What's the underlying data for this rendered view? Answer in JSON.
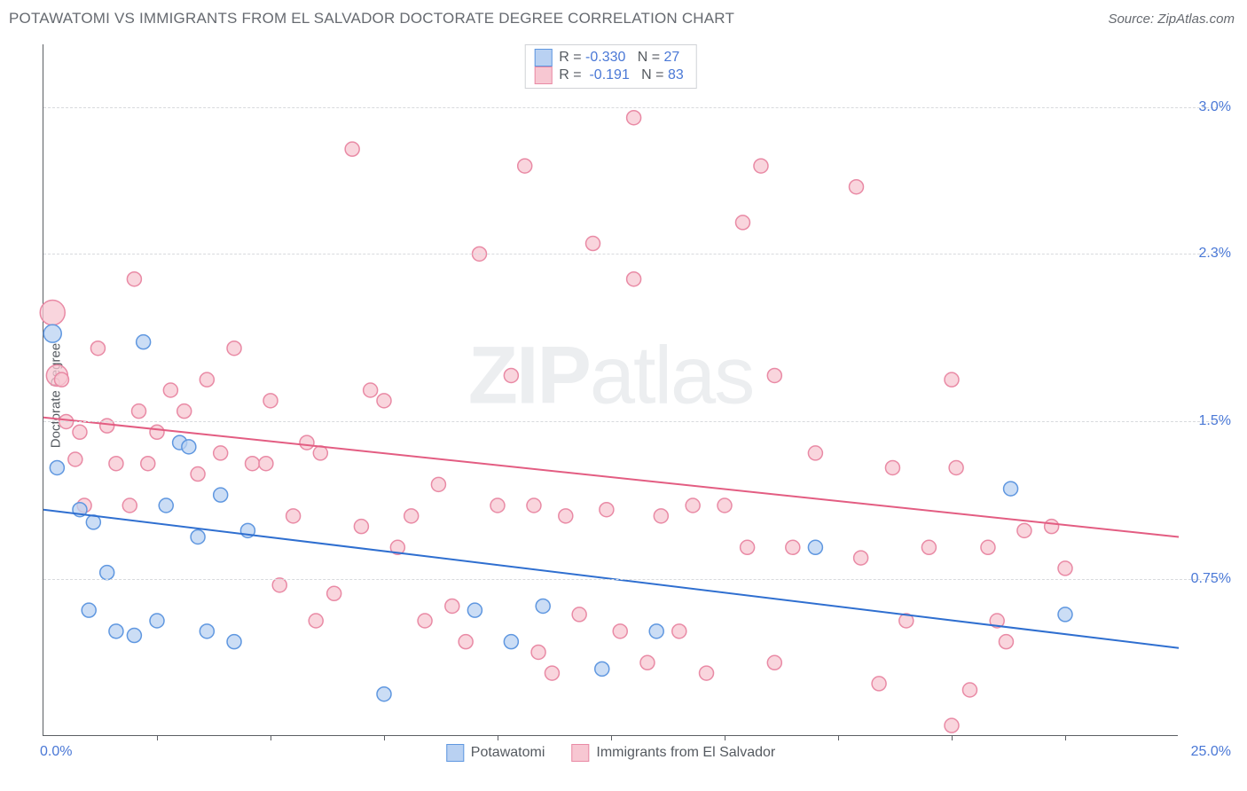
{
  "header": {
    "title": "POTAWATOMI VS IMMIGRANTS FROM EL SALVADOR DOCTORATE DEGREE CORRELATION CHART",
    "source": "Source: ZipAtlas.com"
  },
  "watermark": {
    "part1": "ZIP",
    "part2": "atlas"
  },
  "chart": {
    "type": "scatter",
    "ylabel": "Doctorate Degree",
    "background_color": "#ffffff",
    "grid_color": "#d8dadd",
    "axis_color": "#5b5e63",
    "label_color": "#555a60",
    "value_color": "#4a78d6",
    "xlim": [
      0,
      25
    ],
    "ylim": [
      0,
      3.3
    ],
    "xtick_positions": [
      2.5,
      5.0,
      7.5,
      10.0,
      12.5,
      15.0,
      17.5,
      20.0,
      22.5
    ],
    "xlim_labels": {
      "min": "0.0%",
      "max": "25.0%"
    },
    "yticks": [
      {
        "value": 0.75,
        "label": "0.75%"
      },
      {
        "value": 1.5,
        "label": "1.5%"
      },
      {
        "value": 2.3,
        "label": "2.3%"
      },
      {
        "value": 3.0,
        "label": "3.0%"
      }
    ],
    "series": [
      {
        "name": "Potawatomi",
        "fill": "#b9d1f2",
        "stroke": "#5f97e0",
        "line_color": "#2f6fd0",
        "r_label": "R = ",
        "r_value": "-0.330",
        "n_label": "   N = ",
        "n_value": "27",
        "trend": {
          "x1": 0,
          "y1": 1.08,
          "x2": 25,
          "y2": 0.42
        },
        "points": [
          {
            "x": 0.2,
            "y": 1.92,
            "r": 10
          },
          {
            "x": 0.3,
            "y": 1.28,
            "r": 8
          },
          {
            "x": 0.8,
            "y": 1.08,
            "r": 8
          },
          {
            "x": 1.1,
            "y": 1.02,
            "r": 8
          },
          {
            "x": 1.0,
            "y": 0.6,
            "r": 8
          },
          {
            "x": 1.4,
            "y": 0.78,
            "r": 8
          },
          {
            "x": 1.6,
            "y": 0.5,
            "r": 8
          },
          {
            "x": 2.0,
            "y": 0.48,
            "r": 8
          },
          {
            "x": 2.2,
            "y": 1.88,
            "r": 8
          },
          {
            "x": 2.7,
            "y": 1.1,
            "r": 8
          },
          {
            "x": 3.0,
            "y": 1.4,
            "r": 8
          },
          {
            "x": 3.2,
            "y": 1.38,
            "r": 8
          },
          {
            "x": 3.4,
            "y": 0.95,
            "r": 8
          },
          {
            "x": 3.6,
            "y": 0.5,
            "r": 8
          },
          {
            "x": 4.2,
            "y": 0.45,
            "r": 8
          },
          {
            "x": 3.9,
            "y": 1.15,
            "r": 8
          },
          {
            "x": 4.5,
            "y": 0.98,
            "r": 8
          },
          {
            "x": 7.5,
            "y": 0.2,
            "r": 8
          },
          {
            "x": 9.5,
            "y": 0.6,
            "r": 8
          },
          {
            "x": 10.3,
            "y": 0.45,
            "r": 8
          },
          {
            "x": 11.0,
            "y": 0.62,
            "r": 8
          },
          {
            "x": 12.3,
            "y": 0.32,
            "r": 8
          },
          {
            "x": 13.5,
            "y": 0.5,
            "r": 8
          },
          {
            "x": 17.0,
            "y": 0.9,
            "r": 8
          },
          {
            "x": 21.3,
            "y": 1.18,
            "r": 8
          },
          {
            "x": 22.5,
            "y": 0.58,
            "r": 8
          },
          {
            "x": 2.5,
            "y": 0.55,
            "r": 8
          }
        ]
      },
      {
        "name": "Immigrants from El Salvador",
        "fill": "#f7c7d2",
        "stroke": "#e98aa5",
        "line_color": "#e35d82",
        "r_label": "R = ",
        "r_value": " -0.191",
        "n_label": "   N = ",
        "n_value": "83",
        "trend": {
          "x1": 0,
          "y1": 1.52,
          "x2": 25,
          "y2": 0.95
        },
        "points": [
          {
            "x": 0.2,
            "y": 2.02,
            "r": 14
          },
          {
            "x": 0.3,
            "y": 1.72,
            "r": 12
          },
          {
            "x": 0.4,
            "y": 1.7,
            "r": 8
          },
          {
            "x": 0.5,
            "y": 1.5,
            "r": 8
          },
          {
            "x": 0.7,
            "y": 1.32,
            "r": 8
          },
          {
            "x": 0.8,
            "y": 1.45,
            "r": 8
          },
          {
            "x": 1.2,
            "y": 1.85,
            "r": 8
          },
          {
            "x": 1.4,
            "y": 1.48,
            "r": 8
          },
          {
            "x": 1.6,
            "y": 1.3,
            "r": 8
          },
          {
            "x": 2.0,
            "y": 2.18,
            "r": 8
          },
          {
            "x": 2.1,
            "y": 1.55,
            "r": 8
          },
          {
            "x": 2.3,
            "y": 1.3,
            "r": 8
          },
          {
            "x": 2.5,
            "y": 1.45,
            "r": 8
          },
          {
            "x": 2.8,
            "y": 1.65,
            "r": 8
          },
          {
            "x": 3.1,
            "y": 1.55,
            "r": 8
          },
          {
            "x": 3.4,
            "y": 1.25,
            "r": 8
          },
          {
            "x": 3.6,
            "y": 1.7,
            "r": 8
          },
          {
            "x": 3.9,
            "y": 1.35,
            "r": 8
          },
          {
            "x": 4.2,
            "y": 1.85,
            "r": 8
          },
          {
            "x": 4.6,
            "y": 1.3,
            "r": 8
          },
          {
            "x": 5.0,
            "y": 1.6,
            "r": 8
          },
          {
            "x": 5.2,
            "y": 0.72,
            "r": 8
          },
          {
            "x": 5.5,
            "y": 1.05,
            "r": 8
          },
          {
            "x": 5.8,
            "y": 1.4,
            "r": 8
          },
          {
            "x": 6.1,
            "y": 1.35,
            "r": 8
          },
          {
            "x": 6.4,
            "y": 0.68,
            "r": 8
          },
          {
            "x": 6.8,
            "y": 2.8,
            "r": 8
          },
          {
            "x": 7.0,
            "y": 1.0,
            "r": 8
          },
          {
            "x": 7.2,
            "y": 1.65,
            "r": 8
          },
          {
            "x": 7.5,
            "y": 1.6,
            "r": 8
          },
          {
            "x": 7.8,
            "y": 0.9,
            "r": 8
          },
          {
            "x": 8.1,
            "y": 1.05,
            "r": 8
          },
          {
            "x": 8.4,
            "y": 0.55,
            "r": 8
          },
          {
            "x": 8.7,
            "y": 1.2,
            "r": 8
          },
          {
            "x": 9.0,
            "y": 0.62,
            "r": 8
          },
          {
            "x": 9.3,
            "y": 0.45,
            "r": 8
          },
          {
            "x": 9.6,
            "y": 2.3,
            "r": 8
          },
          {
            "x": 10.0,
            "y": 1.1,
            "r": 8
          },
          {
            "x": 10.3,
            "y": 1.72,
            "r": 8
          },
          {
            "x": 10.6,
            "y": 2.72,
            "r": 8
          },
          {
            "x": 10.8,
            "y": 1.1,
            "r": 8
          },
          {
            "x": 10.9,
            "y": 0.4,
            "r": 8
          },
          {
            "x": 11.2,
            "y": 0.3,
            "r": 8
          },
          {
            "x": 11.5,
            "y": 1.05,
            "r": 8
          },
          {
            "x": 11.8,
            "y": 0.58,
            "r": 8
          },
          {
            "x": 12.1,
            "y": 2.35,
            "r": 8
          },
          {
            "x": 12.4,
            "y": 1.08,
            "r": 8
          },
          {
            "x": 12.7,
            "y": 0.5,
            "r": 8
          },
          {
            "x": 13.0,
            "y": 2.95,
            "r": 8
          },
          {
            "x": 13.0,
            "y": 2.18,
            "r": 8
          },
          {
            "x": 13.3,
            "y": 0.35,
            "r": 8
          },
          {
            "x": 13.6,
            "y": 1.05,
            "r": 8
          },
          {
            "x": 14.0,
            "y": 0.5,
            "r": 8
          },
          {
            "x": 14.6,
            "y": 0.3,
            "r": 8
          },
          {
            "x": 15.0,
            "y": 1.1,
            "r": 8
          },
          {
            "x": 15.4,
            "y": 2.45,
            "r": 8
          },
          {
            "x": 15.5,
            "y": 0.9,
            "r": 8
          },
          {
            "x": 15.8,
            "y": 2.72,
            "r": 8
          },
          {
            "x": 16.1,
            "y": 1.72,
            "r": 8
          },
          {
            "x": 16.1,
            "y": 0.35,
            "r": 8
          },
          {
            "x": 16.5,
            "y": 0.9,
            "r": 8
          },
          {
            "x": 17.0,
            "y": 1.35,
            "r": 8
          },
          {
            "x": 17.9,
            "y": 2.62,
            "r": 8
          },
          {
            "x": 18.0,
            "y": 0.85,
            "r": 8
          },
          {
            "x": 18.4,
            "y": 0.25,
            "r": 8
          },
          {
            "x": 18.7,
            "y": 1.28,
            "r": 8
          },
          {
            "x": 19.0,
            "y": 0.55,
            "r": 8
          },
          {
            "x": 19.5,
            "y": 0.9,
            "r": 8
          },
          {
            "x": 20.0,
            "y": 1.7,
            "r": 8
          },
          {
            "x": 20.1,
            "y": 1.28,
            "r": 8
          },
          {
            "x": 20.4,
            "y": 0.22,
            "r": 8
          },
          {
            "x": 20.8,
            "y": 0.9,
            "r": 8
          },
          {
            "x": 21.2,
            "y": 0.45,
            "r": 8
          },
          {
            "x": 21.6,
            "y": 0.98,
            "r": 8
          },
          {
            "x": 22.2,
            "y": 1.0,
            "r": 8
          },
          {
            "x": 22.5,
            "y": 0.8,
            "r": 8
          },
          {
            "x": 21.0,
            "y": 0.55,
            "r": 8
          },
          {
            "x": 20.0,
            "y": 0.05,
            "r": 8
          },
          {
            "x": 14.3,
            "y": 1.1,
            "r": 8
          },
          {
            "x": 6.0,
            "y": 0.55,
            "r": 8
          },
          {
            "x": 4.9,
            "y": 1.3,
            "r": 8
          },
          {
            "x": 1.9,
            "y": 1.1,
            "r": 8
          },
          {
            "x": 0.9,
            "y": 1.1,
            "r": 8
          }
        ]
      }
    ],
    "bottom_legend": [
      {
        "label": "Potawatomi",
        "fill": "#b9d1f2",
        "stroke": "#5f97e0"
      },
      {
        "label": "Immigrants from El Salvador",
        "fill": "#f7c7d2",
        "stroke": "#e98aa5"
      }
    ]
  }
}
